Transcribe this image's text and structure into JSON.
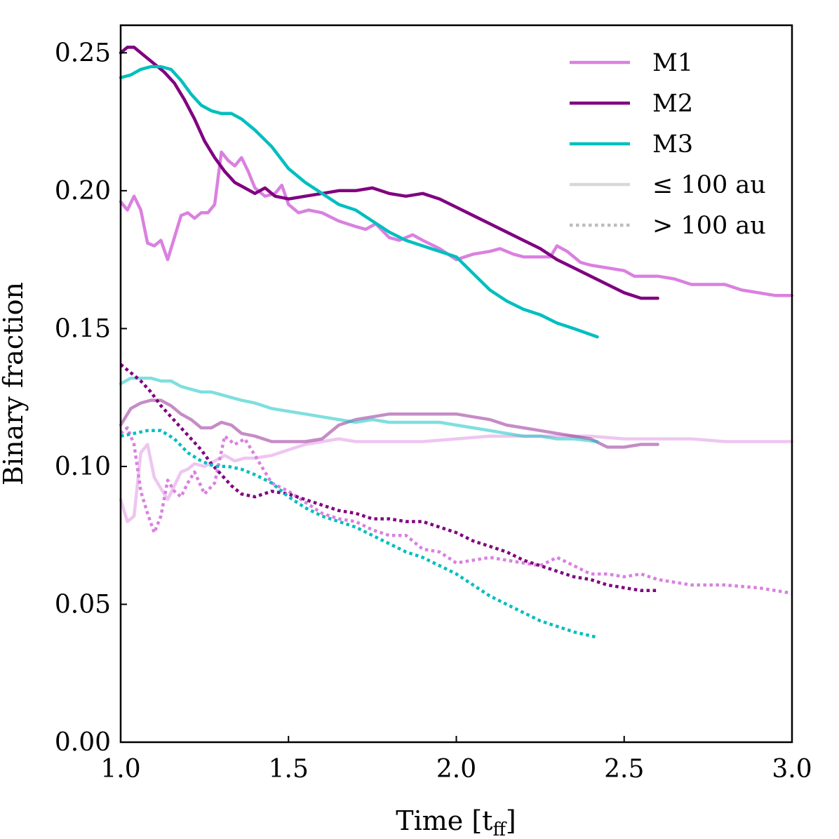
{
  "chart_data": {
    "type": "line",
    "title": "",
    "xlabel": "Time [t",
    "xlabel_subscript": "ff",
    "xlabel_close": "]",
    "ylabel": "Binary fraction",
    "xlim": [
      1.0,
      3.0
    ],
    "ylim": [
      0.0,
      0.26
    ],
    "xticks": [
      1.0,
      1.5,
      2.0,
      2.5,
      3.0
    ],
    "xtick_labels": [
      "1.0",
      "1.5",
      "2.0",
      "2.5",
      "3.0"
    ],
    "yticks": [
      0.0,
      0.05,
      0.1,
      0.15,
      0.2,
      0.25
    ],
    "ytick_labels": [
      "0.00",
      "0.05",
      "0.10",
      "0.15",
      "0.20",
      "0.25"
    ],
    "grid": false,
    "legend_position": "top-right",
    "legend": [
      {
        "label": "M1",
        "color": "#da80e0",
        "style": "solid"
      },
      {
        "label": "M2",
        "color": "#800080",
        "style": "solid"
      },
      {
        "label": "M3",
        "color": "#00bfbf",
        "style": "solid"
      },
      {
        "label": "≤ 100 au",
        "color": "#d8d8d8",
        "style": "solid"
      },
      {
        "label": "> 100 au",
        "color": "#bdbdbd",
        "style": "dotted"
      }
    ],
    "series": [
      {
        "name": "M1 all",
        "model": "M1",
        "kind": "all",
        "color": "#da80e0",
        "opacity": 1.0,
        "style": "solid",
        "x": [
          1.0,
          1.02,
          1.04,
          1.06,
          1.08,
          1.1,
          1.12,
          1.14,
          1.16,
          1.18,
          1.2,
          1.22,
          1.24,
          1.26,
          1.28,
          1.3,
          1.32,
          1.34,
          1.36,
          1.38,
          1.4,
          1.43,
          1.46,
          1.48,
          1.5,
          1.53,
          1.56,
          1.6,
          1.65,
          1.7,
          1.73,
          1.76,
          1.8,
          1.83,
          1.87,
          1.9,
          1.95,
          2.0,
          2.05,
          2.1,
          2.13,
          2.17,
          2.2,
          2.25,
          2.28,
          2.3,
          2.33,
          2.37,
          2.4,
          2.45,
          2.5,
          2.53,
          2.56,
          2.6,
          2.65,
          2.7,
          2.75,
          2.8,
          2.85,
          2.9,
          2.95,
          3.0
        ],
        "y": [
          0.196,
          0.193,
          0.198,
          0.193,
          0.181,
          0.18,
          0.182,
          0.175,
          0.183,
          0.191,
          0.192,
          0.19,
          0.192,
          0.192,
          0.195,
          0.214,
          0.211,
          0.209,
          0.212,
          0.207,
          0.201,
          0.198,
          0.199,
          0.202,
          0.195,
          0.192,
          0.193,
          0.192,
          0.189,
          0.187,
          0.186,
          0.188,
          0.183,
          0.182,
          0.184,
          0.182,
          0.179,
          0.175,
          0.177,
          0.178,
          0.179,
          0.177,
          0.176,
          0.176,
          0.176,
          0.18,
          0.178,
          0.174,
          0.173,
          0.172,
          0.171,
          0.169,
          0.169,
          0.169,
          0.168,
          0.166,
          0.166,
          0.166,
          0.164,
          0.163,
          0.162,
          0.162
        ]
      },
      {
        "name": "M2 all",
        "model": "M2",
        "kind": "all",
        "color": "#800080",
        "opacity": 1.0,
        "style": "solid",
        "x": [
          1.0,
          1.02,
          1.04,
          1.07,
          1.1,
          1.13,
          1.16,
          1.19,
          1.22,
          1.25,
          1.28,
          1.31,
          1.34,
          1.37,
          1.4,
          1.43,
          1.46,
          1.5,
          1.55,
          1.6,
          1.65,
          1.7,
          1.75,
          1.8,
          1.85,
          1.9,
          1.95,
          2.0,
          2.05,
          2.1,
          2.15,
          2.2,
          2.25,
          2.3,
          2.35,
          2.4,
          2.45,
          2.5,
          2.55,
          2.6
        ],
        "y": [
          0.25,
          0.252,
          0.252,
          0.249,
          0.246,
          0.243,
          0.239,
          0.233,
          0.226,
          0.218,
          0.212,
          0.207,
          0.203,
          0.201,
          0.199,
          0.201,
          0.198,
          0.197,
          0.198,
          0.199,
          0.2,
          0.2,
          0.201,
          0.199,
          0.198,
          0.199,
          0.197,
          0.194,
          0.191,
          0.188,
          0.185,
          0.182,
          0.179,
          0.175,
          0.172,
          0.169,
          0.166,
          0.163,
          0.161,
          0.161
        ]
      },
      {
        "name": "M3 all",
        "model": "M3",
        "kind": "all",
        "color": "#00bfbf",
        "opacity": 1.0,
        "style": "solid",
        "x": [
          1.0,
          1.03,
          1.06,
          1.09,
          1.12,
          1.15,
          1.18,
          1.21,
          1.24,
          1.27,
          1.3,
          1.33,
          1.36,
          1.4,
          1.45,
          1.5,
          1.55,
          1.6,
          1.65,
          1.7,
          1.75,
          1.8,
          1.85,
          1.9,
          1.95,
          2.0,
          2.05,
          2.1,
          2.15,
          2.2,
          2.25,
          2.3,
          2.35,
          2.42
        ],
        "y": [
          0.241,
          0.242,
          0.244,
          0.245,
          0.245,
          0.244,
          0.24,
          0.235,
          0.231,
          0.229,
          0.228,
          0.228,
          0.226,
          0.222,
          0.216,
          0.208,
          0.203,
          0.199,
          0.195,
          0.193,
          0.189,
          0.185,
          0.182,
          0.18,
          0.178,
          0.176,
          0.17,
          0.164,
          0.16,
          0.157,
          0.155,
          0.152,
          0.15,
          0.147
        ]
      },
      {
        "name": "M1 ≤ 100 au",
        "model": "M1",
        "kind": "close",
        "color": "#da80e0",
        "opacity": 0.45,
        "style": "solid",
        "x": [
          1.0,
          1.02,
          1.04,
          1.06,
          1.08,
          1.1,
          1.12,
          1.14,
          1.16,
          1.18,
          1.2,
          1.22,
          1.25,
          1.28,
          1.31,
          1.34,
          1.37,
          1.4,
          1.45,
          1.5,
          1.55,
          1.6,
          1.65,
          1.7,
          1.8,
          1.9,
          2.0,
          2.1,
          2.2,
          2.3,
          2.4,
          2.5,
          2.6,
          2.7,
          2.8,
          2.9,
          3.0
        ],
        "y": [
          0.088,
          0.08,
          0.082,
          0.105,
          0.108,
          0.096,
          0.092,
          0.088,
          0.093,
          0.098,
          0.099,
          0.101,
          0.1,
          0.102,
          0.104,
          0.102,
          0.103,
          0.103,
          0.104,
          0.106,
          0.108,
          0.109,
          0.11,
          0.109,
          0.109,
          0.109,
          0.11,
          0.111,
          0.111,
          0.111,
          0.111,
          0.11,
          0.11,
          0.11,
          0.109,
          0.109,
          0.109
        ]
      },
      {
        "name": "M2 ≤ 100 au",
        "model": "M2",
        "kind": "close",
        "color": "#800080",
        "opacity": 0.45,
        "style": "solid",
        "x": [
          1.0,
          1.03,
          1.06,
          1.09,
          1.12,
          1.15,
          1.18,
          1.21,
          1.24,
          1.27,
          1.3,
          1.33,
          1.36,
          1.4,
          1.45,
          1.5,
          1.55,
          1.6,
          1.65,
          1.7,
          1.75,
          1.8,
          1.85,
          1.9,
          1.95,
          2.0,
          2.05,
          2.1,
          2.15,
          2.2,
          2.25,
          2.3,
          2.35,
          2.4,
          2.45,
          2.5,
          2.55,
          2.6
        ],
        "y": [
          0.115,
          0.121,
          0.123,
          0.124,
          0.124,
          0.122,
          0.119,
          0.117,
          0.114,
          0.114,
          0.116,
          0.115,
          0.112,
          0.111,
          0.109,
          0.109,
          0.109,
          0.11,
          0.115,
          0.117,
          0.118,
          0.119,
          0.119,
          0.119,
          0.119,
          0.119,
          0.118,
          0.117,
          0.115,
          0.114,
          0.113,
          0.112,
          0.111,
          0.11,
          0.107,
          0.107,
          0.108,
          0.108
        ]
      },
      {
        "name": "M3 ≤ 100 au",
        "model": "M3",
        "kind": "close",
        "color": "#00bfbf",
        "opacity": 0.5,
        "style": "solid",
        "x": [
          1.0,
          1.03,
          1.06,
          1.09,
          1.12,
          1.15,
          1.18,
          1.21,
          1.24,
          1.27,
          1.3,
          1.33,
          1.36,
          1.4,
          1.45,
          1.5,
          1.55,
          1.6,
          1.65,
          1.7,
          1.75,
          1.8,
          1.85,
          1.9,
          1.95,
          2.0,
          2.05,
          2.1,
          2.15,
          2.2,
          2.25,
          2.3,
          2.35,
          2.42
        ],
        "y": [
          0.13,
          0.132,
          0.132,
          0.132,
          0.131,
          0.131,
          0.129,
          0.128,
          0.127,
          0.127,
          0.126,
          0.125,
          0.124,
          0.123,
          0.121,
          0.12,
          0.119,
          0.118,
          0.117,
          0.116,
          0.117,
          0.116,
          0.116,
          0.116,
          0.116,
          0.115,
          0.114,
          0.113,
          0.112,
          0.111,
          0.111,
          0.11,
          0.11,
          0.109
        ]
      },
      {
        "name": "M1 > 100 au",
        "model": "M1",
        "kind": "wide",
        "color": "#da80e0",
        "opacity": 1.0,
        "style": "dotted",
        "x": [
          1.0,
          1.02,
          1.04,
          1.06,
          1.08,
          1.1,
          1.12,
          1.14,
          1.16,
          1.18,
          1.2,
          1.22,
          1.25,
          1.28,
          1.31,
          1.34,
          1.37,
          1.4,
          1.45,
          1.5,
          1.55,
          1.6,
          1.65,
          1.7,
          1.75,
          1.8,
          1.85,
          1.9,
          1.95,
          2.0,
          2.05,
          2.1,
          2.15,
          2.2,
          2.25,
          2.3,
          2.35,
          2.4,
          2.45,
          2.5,
          2.55,
          2.6,
          2.7,
          2.8,
          2.9,
          3.0
        ],
        "y": [
          0.112,
          0.114,
          0.108,
          0.091,
          0.083,
          0.076,
          0.082,
          0.095,
          0.091,
          0.089,
          0.094,
          0.098,
          0.09,
          0.094,
          0.111,
          0.108,
          0.11,
          0.104,
          0.094,
          0.091,
          0.087,
          0.083,
          0.081,
          0.08,
          0.077,
          0.075,
          0.075,
          0.07,
          0.069,
          0.065,
          0.066,
          0.067,
          0.066,
          0.065,
          0.064,
          0.067,
          0.064,
          0.061,
          0.061,
          0.06,
          0.061,
          0.059,
          0.057,
          0.057,
          0.056,
          0.054
        ]
      },
      {
        "name": "M2 > 100 au",
        "model": "M2",
        "kind": "wide",
        "color": "#800080",
        "opacity": 1.0,
        "style": "dotted",
        "x": [
          1.0,
          1.03,
          1.06,
          1.09,
          1.12,
          1.15,
          1.18,
          1.21,
          1.24,
          1.27,
          1.3,
          1.33,
          1.36,
          1.4,
          1.45,
          1.5,
          1.55,
          1.6,
          1.65,
          1.7,
          1.75,
          1.8,
          1.85,
          1.9,
          1.95,
          2.0,
          2.05,
          2.1,
          2.15,
          2.2,
          2.25,
          2.3,
          2.35,
          2.4,
          2.45,
          2.5,
          2.55,
          2.6
        ],
        "y": [
          0.137,
          0.134,
          0.131,
          0.127,
          0.122,
          0.118,
          0.114,
          0.11,
          0.106,
          0.101,
          0.097,
          0.093,
          0.09,
          0.089,
          0.091,
          0.09,
          0.088,
          0.086,
          0.084,
          0.083,
          0.081,
          0.081,
          0.08,
          0.08,
          0.078,
          0.076,
          0.073,
          0.071,
          0.069,
          0.066,
          0.064,
          0.062,
          0.06,
          0.059,
          0.057,
          0.056,
          0.055,
          0.055
        ]
      },
      {
        "name": "M3 > 100 au",
        "model": "M3",
        "kind": "wide",
        "color": "#00bfbf",
        "opacity": 1.0,
        "style": "dotted",
        "x": [
          1.0,
          1.04,
          1.08,
          1.12,
          1.16,
          1.2,
          1.24,
          1.28,
          1.32,
          1.36,
          1.4,
          1.45,
          1.5,
          1.55,
          1.6,
          1.65,
          1.7,
          1.75,
          1.8,
          1.85,
          1.9,
          1.95,
          2.0,
          2.05,
          2.1,
          2.15,
          2.2,
          2.25,
          2.3,
          2.35,
          2.42
        ],
        "y": [
          0.111,
          0.112,
          0.113,
          0.113,
          0.11,
          0.105,
          0.102,
          0.1,
          0.1,
          0.099,
          0.097,
          0.094,
          0.089,
          0.085,
          0.082,
          0.08,
          0.078,
          0.075,
          0.072,
          0.069,
          0.067,
          0.064,
          0.061,
          0.057,
          0.053,
          0.05,
          0.047,
          0.044,
          0.042,
          0.04,
          0.038
        ]
      }
    ]
  }
}
